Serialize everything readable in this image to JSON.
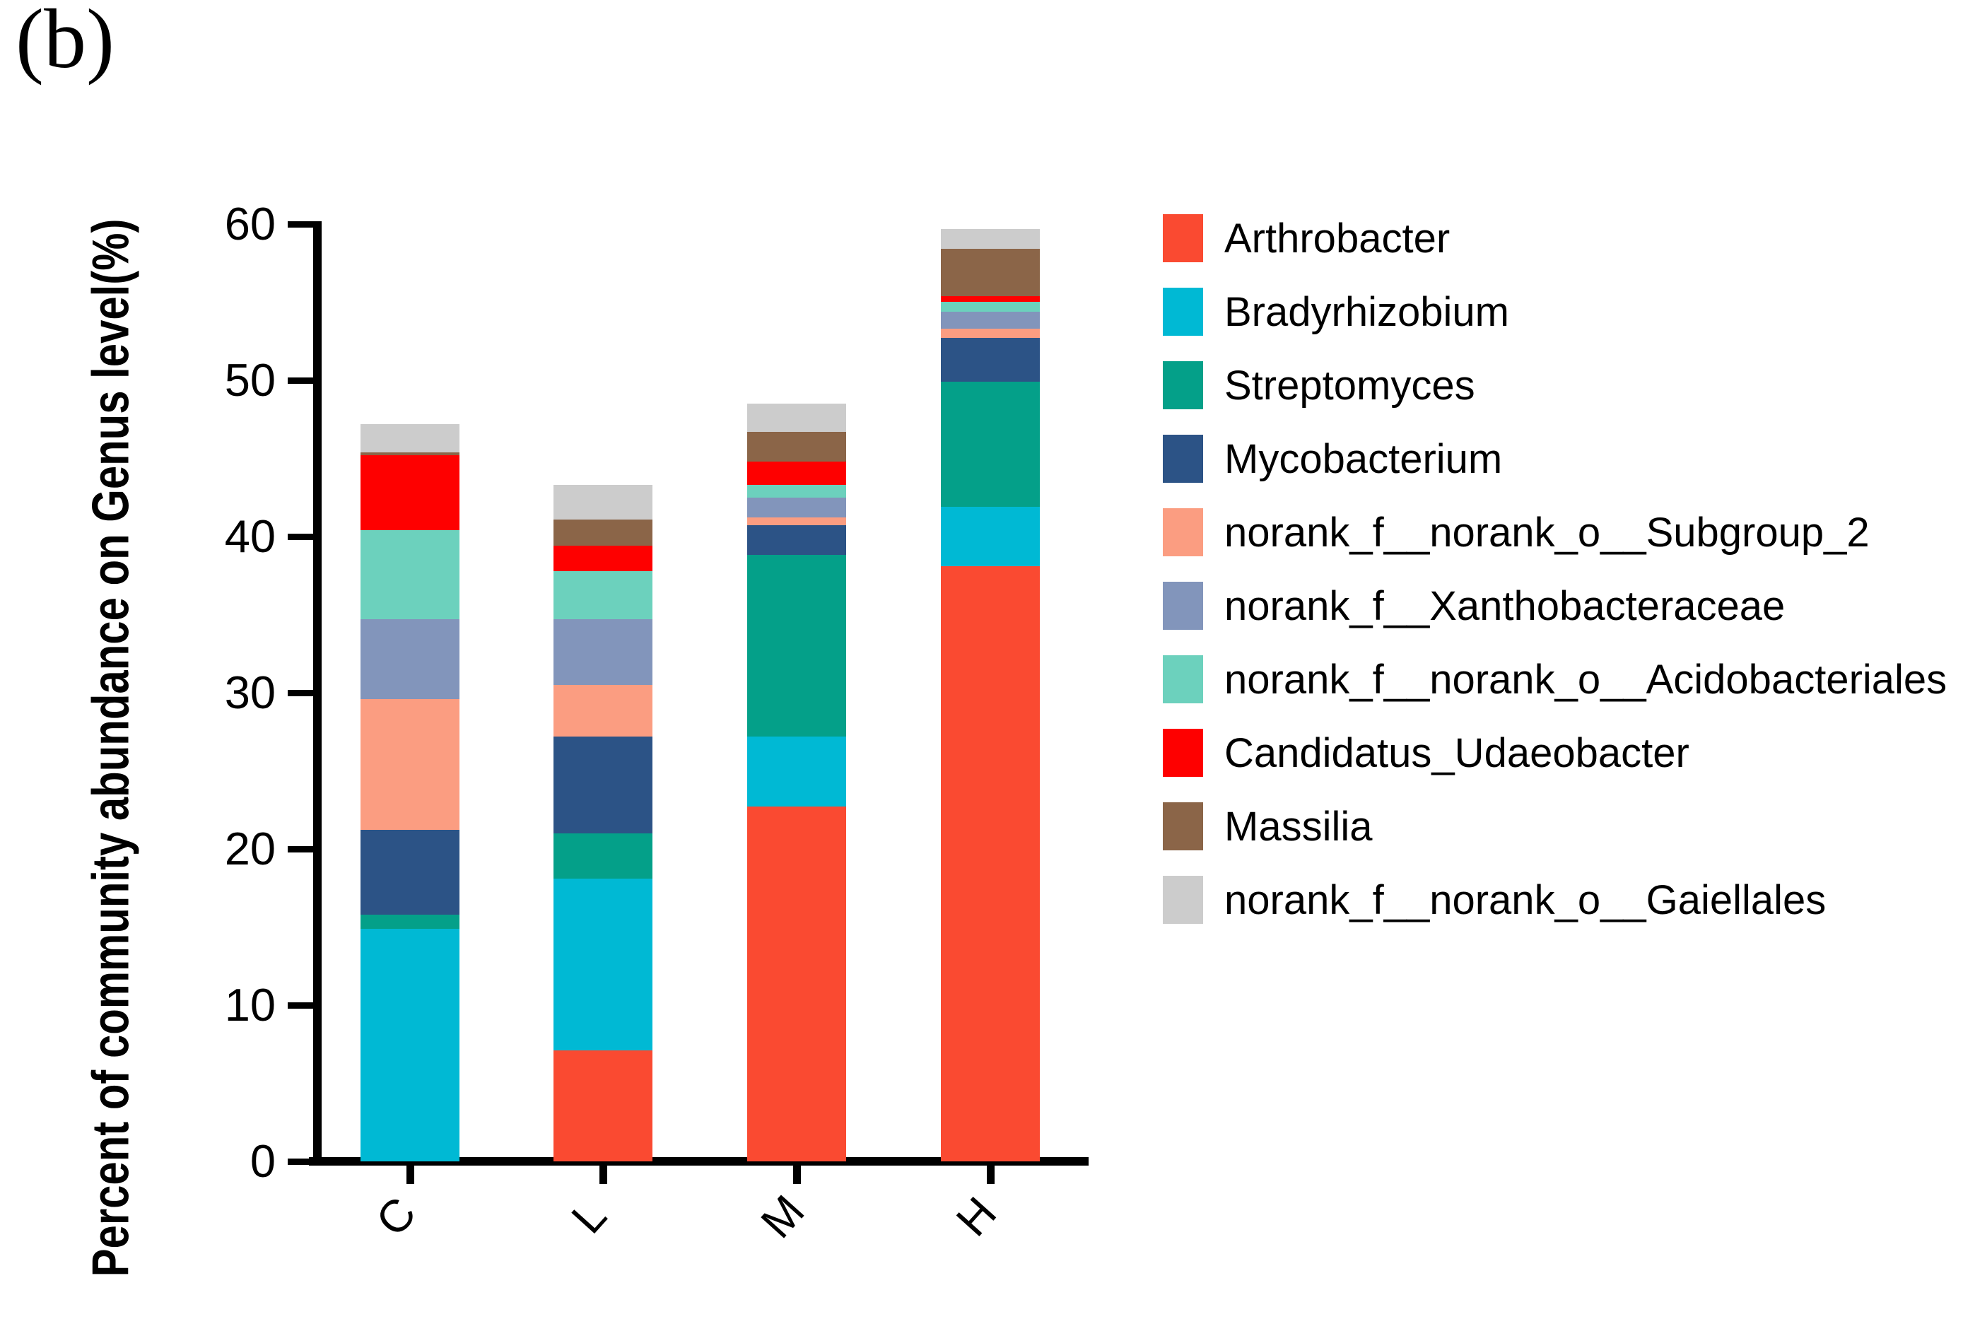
{
  "panel_label": "(b)",
  "axes": {
    "y_ticks": [
      0,
      10,
      20,
      30,
      40,
      50,
      60
    ]
  },
  "chart_data": {
    "type": "bar",
    "stacked": true,
    "title": "",
    "xlabel": "",
    "ylabel": "Percent of community abundance on Genus level(%)",
    "ylim": [
      0,
      60
    ],
    "grid": false,
    "legend_position": "right",
    "categories": [
      "C",
      "L",
      "M",
      "H"
    ],
    "series": [
      {
        "name": "Arthrobacter",
        "color": "#FA4A31",
        "values": [
          0,
          7.1,
          22.7,
          38.1
        ]
      },
      {
        "name": "Bradyrhizobium",
        "color": "#00B9D4",
        "values": [
          14.9,
          11.0,
          4.5,
          3.8
        ]
      },
      {
        "name": "Streptomyces",
        "color": "#04A089",
        "values": [
          0.9,
          2.9,
          11.6,
          8.0
        ]
      },
      {
        "name": "Mycobacterium",
        "color": "#2C5386",
        "values": [
          5.4,
          6.2,
          1.9,
          2.8
        ]
      },
      {
        "name": "norank_f__norank_o__Subgroup_2",
        "color": "#FB9D81",
        "values": [
          8.4,
          3.3,
          0.5,
          0.6
        ]
      },
      {
        "name": "norank_f__Xanthobacteraceae",
        "color": "#8295BB",
        "values": [
          5.1,
          4.2,
          1.3,
          1.1
        ]
      },
      {
        "name": "norank_f__norank_o__Acidobacteriales",
        "color": "#6CD1BD",
        "values": [
          5.7,
          3.1,
          0.8,
          0.6
        ]
      },
      {
        "name": "Candidatus_Udaeobacter",
        "color": "#FE0000",
        "values": [
          4.8,
          1.6,
          1.5,
          0.4
        ]
      },
      {
        "name": "Massilia",
        "color": "#8B6548",
        "values": [
          0.2,
          1.7,
          1.9,
          3.0
        ]
      },
      {
        "name": "norank_f__norank_o__Gaiellales",
        "color": "#CCCCCC",
        "values": [
          1.8,
          2.2,
          1.8,
          1.3
        ]
      }
    ]
  }
}
